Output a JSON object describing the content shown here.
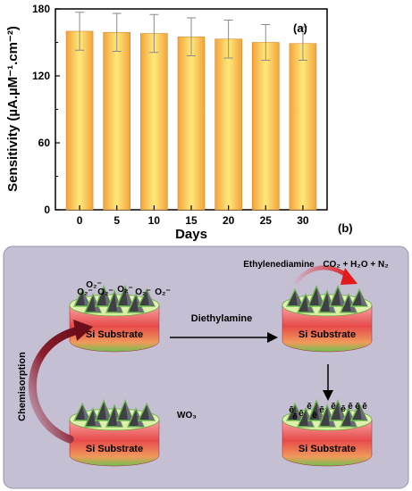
{
  "chart_data": {
    "type": "bar",
    "panel_label": "(a)",
    "categories": [
      "0",
      "5",
      "10",
      "15",
      "20",
      "25",
      "30"
    ],
    "values": [
      160,
      159,
      158,
      155,
      153,
      150,
      149
    ],
    "errors": [
      17,
      17,
      17,
      17,
      17,
      16,
      15
    ],
    "xlabel": "Days",
    "ylabel": "Sensitivity (µA.µM⁻¹.cm⁻²)",
    "ylim": [
      0,
      180
    ],
    "yticks": [
      0,
      60,
      120,
      180
    ],
    "bar_color_center": "#ffe97a",
    "bar_color_edge": "#f2a33c"
  },
  "diagram": {
    "panel_label": "(b)",
    "background": "#c5bfd3",
    "substrate_label": "Si Substrate",
    "oxygen_ions": [
      "O₂⁻",
      "O₂⁻",
      "O₂⁻",
      "O₂⁻",
      "O₂⁻",
      "O₂⁻"
    ],
    "arrow_label": "Diethylamine",
    "chemisorption_label": "Chemisorption",
    "wo3_label": "WO₃",
    "ethylene_label": "Ethylenediamine",
    "products_label": "CO₂ + H₂O + N₂",
    "electrons": [
      "ē",
      "ē",
      "ē",
      "ē",
      "ē",
      "ē",
      "ē",
      "ē",
      "ē",
      "ē",
      "ē"
    ]
  }
}
